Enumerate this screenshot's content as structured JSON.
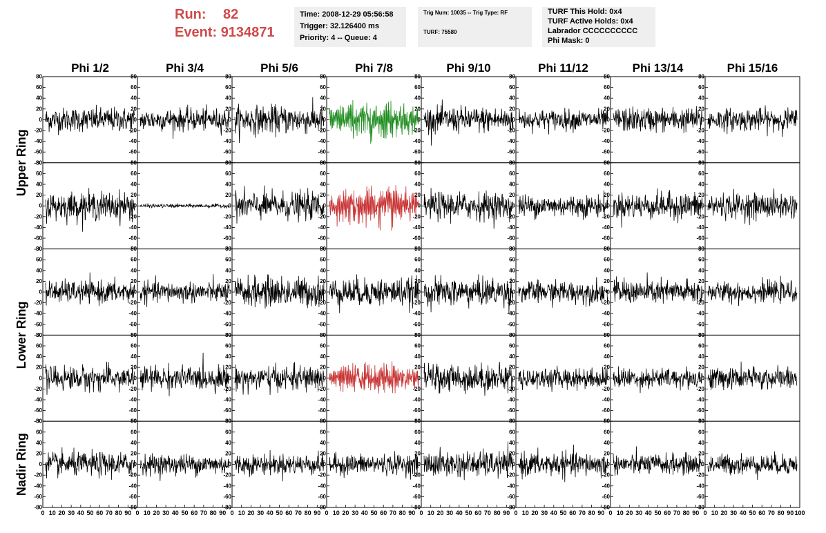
{
  "header": {
    "run_label": "Run:",
    "run_value": "82",
    "event_label": "Event:",
    "event_value": "9134871"
  },
  "info_boxes": {
    "time": "Time: 2008-12-29 05:56:58",
    "trigger": "Trigger: 32.126400 ms",
    "priority": "Priority: 4 -- Queue: 4",
    "trig_num": "Trig Num: 10035 -- Trig Type: RF",
    "turf": "TURF: 75580",
    "turf_hold": "TURF This Hold: 0x4",
    "turf_active": "TURF Active Holds: 0x4",
    "labrador": "Labrador CCCCCCCCCC",
    "phi_mask": "Phi Mask: 0"
  },
  "colors": {
    "default_trace": "#000000",
    "green_trace": "#1e8c1e",
    "red_trace": "#c83232",
    "header_red": "#d04a4a",
    "info_bg": "#efefef"
  },
  "chart_data": {
    "type": "line",
    "columns": [
      "Phi 1/2",
      "Phi 3/4",
      "Phi 5/6",
      "Phi 7/8",
      "Phi 9/10",
      "Phi 11/12",
      "Phi 13/14",
      "Phi 15/16"
    ],
    "rows": [
      "Upper Ring",
      "Lower Ring",
      "Nadir Ring"
    ],
    "ylim": [
      -80,
      80
    ],
    "yticks": [
      80,
      60,
      40,
      20,
      0,
      -20,
      -40,
      -60,
      -80
    ],
    "xlim": [
      0,
      100
    ],
    "xticks": [
      0,
      10,
      20,
      30,
      40,
      50,
      60,
      70,
      80,
      90,
      100
    ],
    "samples": 256,
    "panels": [
      {
        "row": 0,
        "amp": 13,
        "highlight": [
          "",
          "",
          "",
          "green",
          "",
          "",
          "",
          ""
        ],
        "quiet": [
          13,
          12,
          15,
          22,
          14,
          11,
          13,
          12
        ]
      },
      {
        "row": 0,
        "amp": 14,
        "highlight": [
          "",
          "",
          "",
          "red",
          "",
          "",
          "",
          ""
        ],
        "quiet": [
          15,
          2,
          15,
          24,
          15,
          12,
          14,
          14
        ]
      },
      {
        "row": 1,
        "amp": 13,
        "highlight": [
          "",
          "",
          "",
          "",
          "",
          "",
          "",
          ""
        ],
        "quiet": [
          12,
          11,
          16,
          15,
          15,
          12,
          13,
          11
        ]
      },
      {
        "row": 1,
        "amp": 13,
        "highlight": [
          "",
          "",
          "",
          "red",
          "",
          "",
          "",
          ""
        ],
        "quiet": [
          13,
          13,
          13,
          17,
          15,
          11,
          11,
          12
        ]
      },
      {
        "row": 2,
        "amp": 12,
        "highlight": [
          "",
          "",
          "",
          "",
          "",
          "",
          "",
          ""
        ],
        "quiet": [
          13,
          11,
          11,
          11,
          14,
          13,
          11,
          11
        ]
      }
    ]
  }
}
